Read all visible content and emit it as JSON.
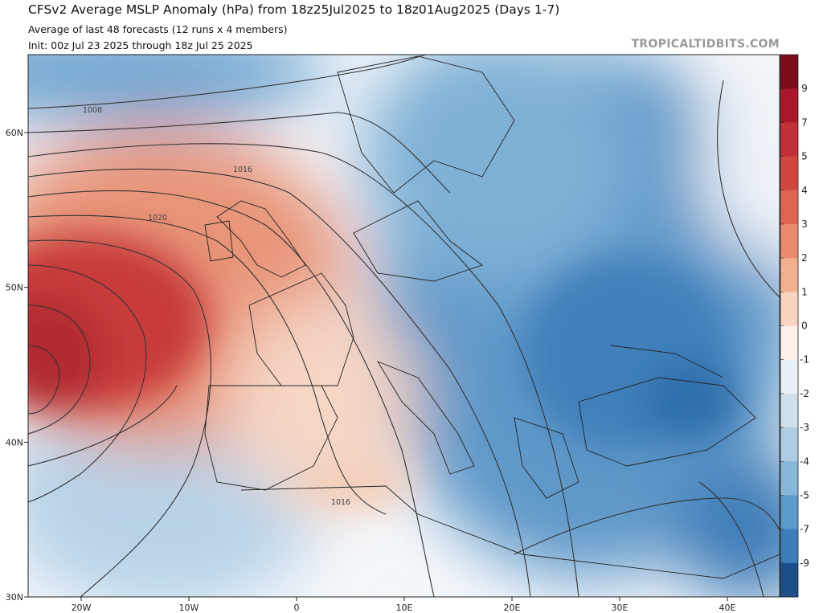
{
  "header": {
    "title": "CFSv2 Average MSLP Anomaly (hPa) from 18z25Jul2025 to 18z01Aug2025 (Days 1-7)",
    "subtitle": "Average of last 48 forecasts (12 runs x 4 members)",
    "init": "Init: 00z Jul 23 2025 through 18z Jul 25 2025",
    "watermark": "TROPICALTIDBITS.COM"
  },
  "map": {
    "lat_labels": [
      "60N",
      "50N",
      "40N",
      "30N"
    ],
    "lon_labels": [
      "20W",
      "10W",
      "0",
      "10E",
      "20E",
      "30E",
      "40E"
    ],
    "contour_labels": [
      "1008",
      "1016",
      "1020",
      "1016"
    ]
  },
  "colorbar": {
    "labels": [
      "9",
      "7",
      "5",
      "4",
      "3",
      "2",
      "1",
      "0",
      "-1",
      "-2",
      "-3",
      "-4",
      "-5",
      "-7",
      "-9"
    ],
    "colors": [
      "#7a0c1c",
      "#a8182a",
      "#c2303a",
      "#d0473f",
      "#dc6650",
      "#e88a6c",
      "#f2b08f",
      "#f9d5c1",
      "#fdf0ea",
      "#e9f0f6",
      "#cfe0ec",
      "#aecde3",
      "#86b7d8",
      "#5b9acb",
      "#3b7db9",
      "#1c4f8a"
    ]
  }
}
